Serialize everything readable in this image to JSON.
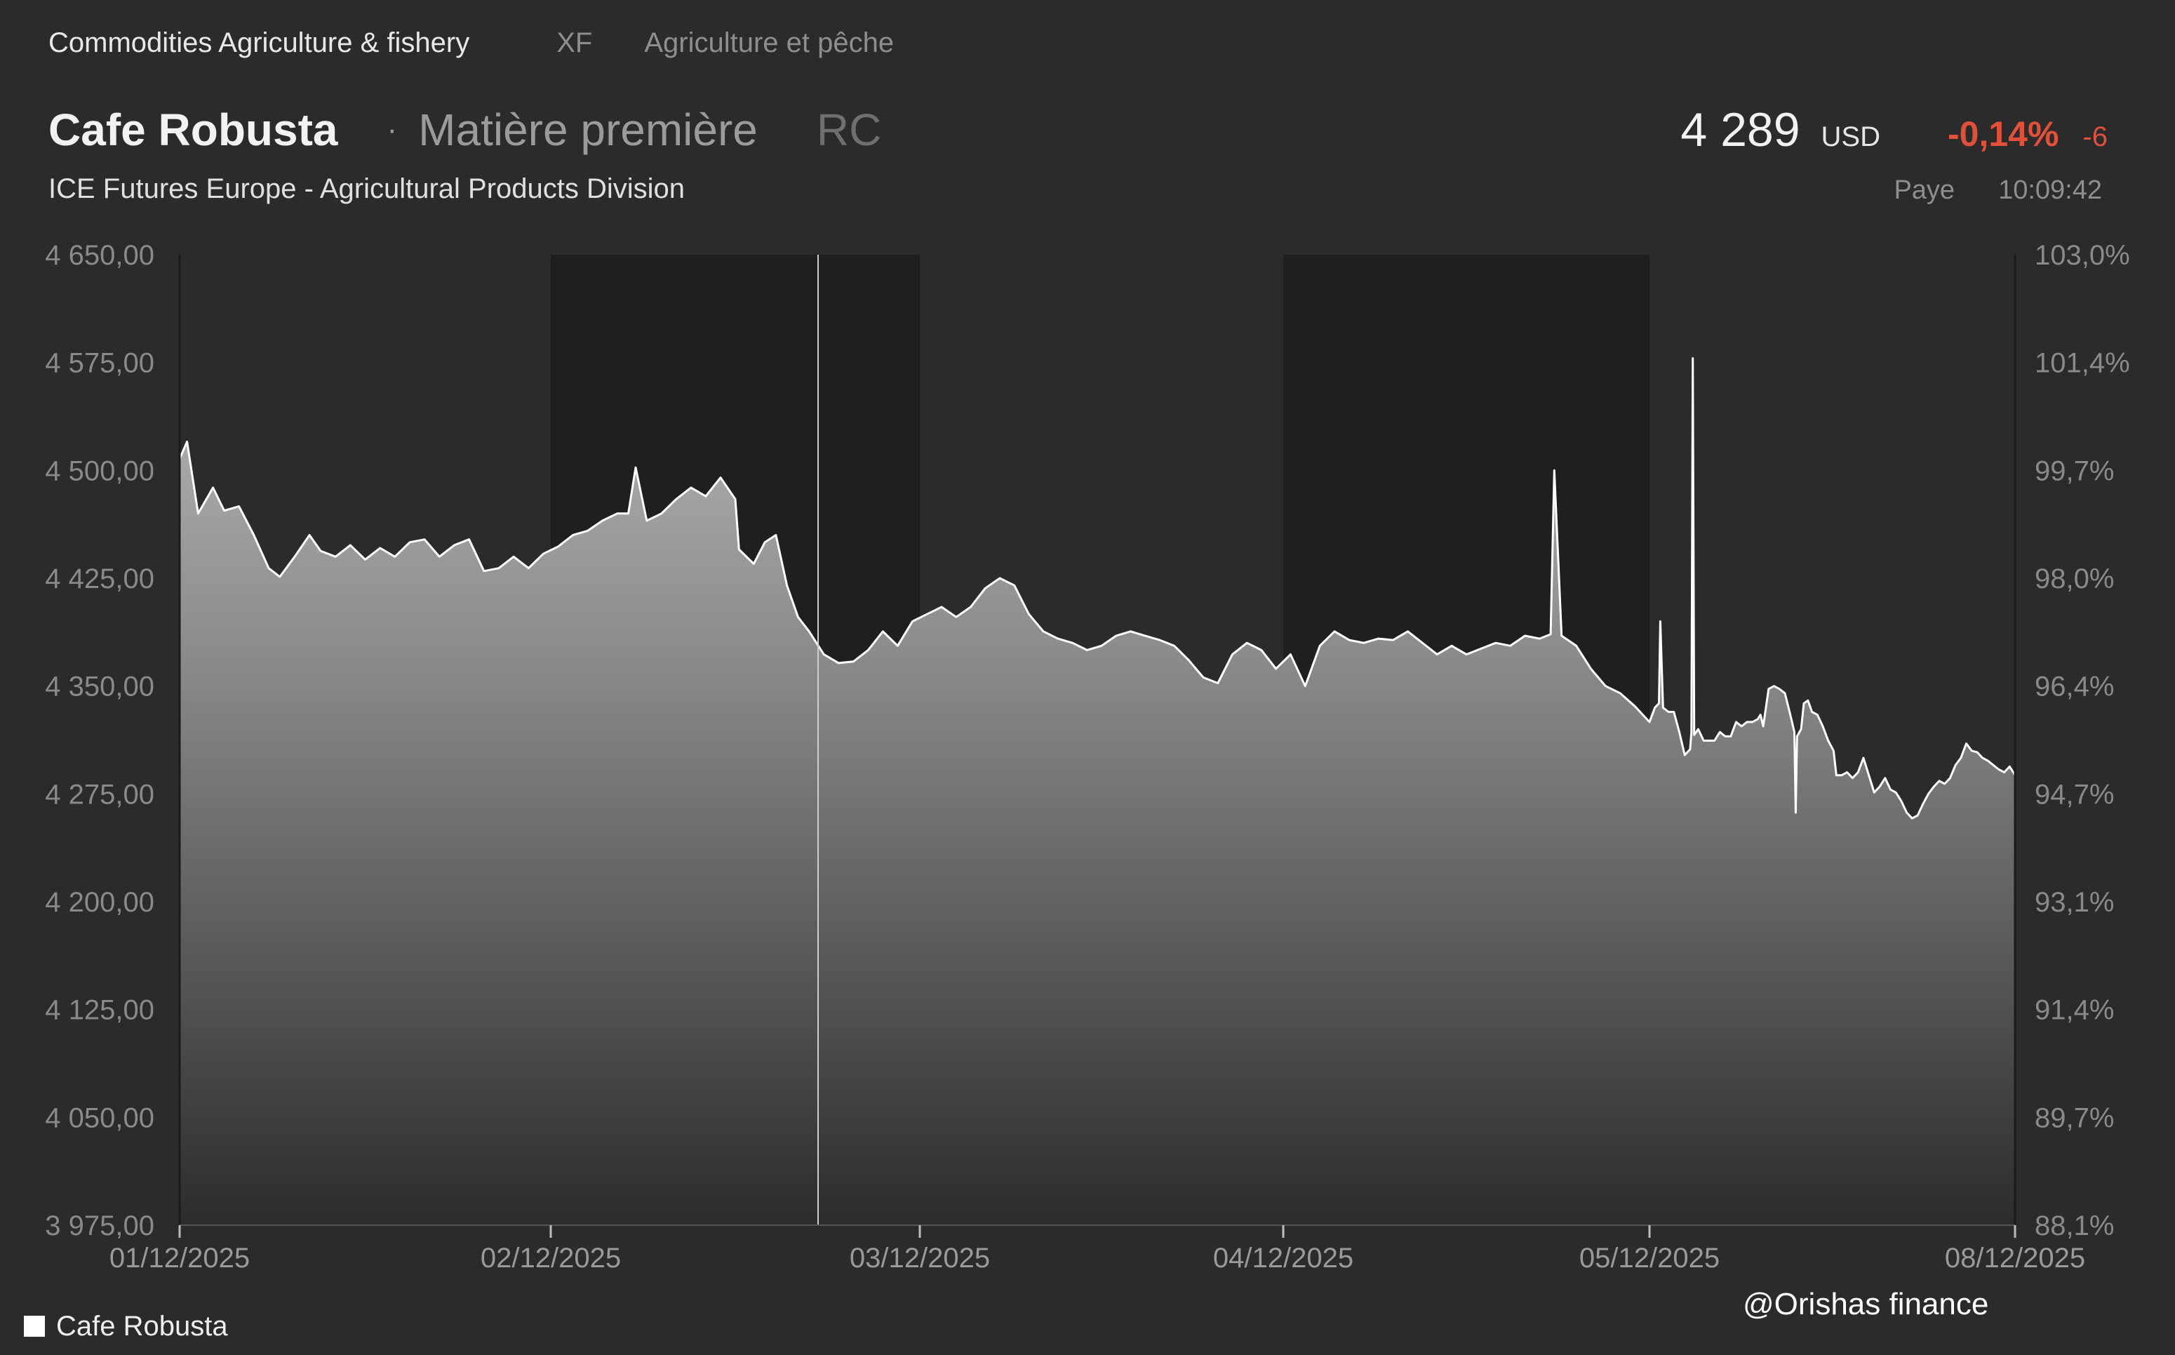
{
  "header": {
    "breadcrumb": {
      "category": "Commodities Agriculture & fishery",
      "code": "XF",
      "category_fr": "Agriculture et pêche"
    },
    "title": "Cafe Robusta",
    "separator": "·",
    "instrument_type": "Matière première",
    "ticker": "RC",
    "exchange": "ICE Futures Europe - Agricultural Products Division"
  },
  "quote": {
    "price": "4 289",
    "currency": "USD",
    "change_pct": "-0,14%",
    "change_abs": "-6",
    "status": "Paye",
    "time": "10:09:42"
  },
  "legend": {
    "series_name": "Cafe Robusta",
    "swatch_color": "#ffffff"
  },
  "watermark": "@Orishas finance",
  "colors": {
    "background": "#2b2b2b",
    "shaded_band": "#1f1f1f",
    "line": "#ffffff",
    "negative": "#e0503a"
  },
  "chart_data": {
    "type": "area",
    "series_name": "Cafe Robusta",
    "ylim": [
      3975,
      4650
    ],
    "y_ticks": [
      4650,
      4575,
      4500,
      4425,
      4350,
      4275,
      4200,
      4125,
      4050,
      3975
    ],
    "y_tick_labels": [
      "4 650,00",
      "4 575,00",
      "4 500,00",
      "4 425,00",
      "4 350,00",
      "4 275,00",
      "4 200,00",
      "4 125,00",
      "4 050,00",
      "3 975,00"
    ],
    "y2_tick_labels": [
      "103,0%",
      "101,4%",
      "99,7%",
      "98,0%",
      "96,4%",
      "94,7%",
      "93,1%",
      "91,4%",
      "89,7%",
      "88,1%"
    ],
    "x_tick_labels": [
      "01/12/2025",
      "02/12/2025",
      "03/12/2025",
      "04/12/2025",
      "05/12/2025",
      "08/12/2025"
    ],
    "shaded_sessions": [
      "02/12/2025",
      "04/12/2025"
    ],
    "points": [
      [
        0.0,
        4508
      ],
      [
        0.02,
        4520
      ],
      [
        0.05,
        4470
      ],
      [
        0.09,
        4488
      ],
      [
        0.12,
        4472
      ],
      [
        0.16,
        4475
      ],
      [
        0.2,
        4455
      ],
      [
        0.24,
        4432
      ],
      [
        0.27,
        4426
      ],
      [
        0.31,
        4440
      ],
      [
        0.35,
        4455
      ],
      [
        0.38,
        4444
      ],
      [
        0.42,
        4440
      ],
      [
        0.46,
        4448
      ],
      [
        0.5,
        4438
      ],
      [
        0.54,
        4446
      ],
      [
        0.58,
        4440
      ],
      [
        0.62,
        4450
      ],
      [
        0.66,
        4452
      ],
      [
        0.7,
        4440
      ],
      [
        0.74,
        4448
      ],
      [
        0.78,
        4452
      ],
      [
        0.82,
        4430
      ],
      [
        0.86,
        4432
      ],
      [
        0.9,
        4440
      ],
      [
        0.94,
        4432
      ],
      [
        0.98,
        4442
      ],
      [
        1.02,
        4447
      ],
      [
        1.06,
        4455
      ],
      [
        1.1,
        4458
      ],
      [
        1.14,
        4465
      ],
      [
        1.18,
        4470
      ],
      [
        1.21,
        4470
      ],
      [
        1.23,
        4502
      ],
      [
        1.26,
        4465
      ],
      [
        1.3,
        4470
      ],
      [
        1.34,
        4480
      ],
      [
        1.38,
        4488
      ],
      [
        1.42,
        4482
      ],
      [
        1.46,
        4495
      ],
      [
        1.5,
        4480
      ],
      [
        1.51,
        4445
      ],
      [
        1.55,
        4435
      ],
      [
        1.58,
        4450
      ],
      [
        1.61,
        4455
      ],
      [
        1.64,
        4420
      ],
      [
        1.67,
        4398
      ],
      [
        1.7,
        4388
      ],
      [
        1.74,
        4372
      ],
      [
        1.78,
        4366
      ],
      [
        1.82,
        4367
      ],
      [
        1.86,
        4375
      ],
      [
        1.9,
        4388
      ],
      [
        1.94,
        4378
      ],
      [
        1.98,
        4395
      ],
      [
        2.02,
        4400
      ],
      [
        2.06,
        4405
      ],
      [
        2.1,
        4398
      ],
      [
        2.14,
        4405
      ],
      [
        2.18,
        4418
      ],
      [
        2.22,
        4425
      ],
      [
        2.26,
        4420
      ],
      [
        2.3,
        4400
      ],
      [
        2.34,
        4388
      ],
      [
        2.38,
        4383
      ],
      [
        2.42,
        4380
      ],
      [
        2.46,
        4375
      ],
      [
        2.5,
        4378
      ],
      [
        2.54,
        4385
      ],
      [
        2.58,
        4388
      ],
      [
        2.62,
        4385
      ],
      [
        2.66,
        4382
      ],
      [
        2.7,
        4378
      ],
      [
        2.74,
        4368
      ],
      [
        2.78,
        4356
      ],
      [
        2.82,
        4352
      ],
      [
        2.86,
        4372
      ],
      [
        2.9,
        4380
      ],
      [
        2.94,
        4375
      ],
      [
        2.98,
        4362
      ],
      [
        3.02,
        4372
      ],
      [
        3.06,
        4350
      ],
      [
        3.1,
        4378
      ],
      [
        3.14,
        4388
      ],
      [
        3.18,
        4382
      ],
      [
        3.22,
        4380
      ],
      [
        3.26,
        4383
      ],
      [
        3.3,
        4382
      ],
      [
        3.34,
        4388
      ],
      [
        3.38,
        4380
      ],
      [
        3.42,
        4372
      ],
      [
        3.46,
        4378
      ],
      [
        3.5,
        4372
      ],
      [
        3.54,
        4376
      ],
      [
        3.58,
        4380
      ],
      [
        3.62,
        4378
      ],
      [
        3.66,
        4385
      ],
      [
        3.7,
        4383
      ],
      [
        3.73,
        4386
      ],
      [
        3.74,
        4500
      ],
      [
        3.76,
        4385
      ],
      [
        3.8,
        4378
      ],
      [
        3.84,
        4362
      ],
      [
        3.88,
        4350
      ],
      [
        3.92,
        4345
      ],
      [
        3.96,
        4336
      ],
      [
        4.0,
        4325
      ],
      [
        4.04,
        4335
      ],
      [
        4.07,
        4338
      ],
      [
        4.08,
        4395
      ],
      [
        4.1,
        4335
      ],
      [
        4.14,
        4332
      ],
      [
        4.18,
        4332
      ],
      [
        4.22,
        4318
      ],
      [
        4.26,
        4302
      ],
      [
        4.3,
        4306
      ],
      [
        4.31,
        4318
      ],
      [
        4.32,
        4578
      ],
      [
        4.33,
        4316
      ],
      [
        4.36,
        4320
      ],
      [
        4.4,
        4312
      ],
      [
        4.44,
        4312
      ],
      [
        4.48,
        4312
      ],
      [
        4.52,
        4318
      ],
      [
        4.56,
        4315
      ],
      [
        4.6,
        4315
      ],
      [
        4.64,
        4325
      ],
      [
        4.68,
        4322
      ],
      [
        4.72,
        4325
      ],
      [
        4.76,
        4325
      ],
      [
        4.8,
        4327
      ],
      [
        4.82,
        4330
      ],
      [
        4.84,
        4322
      ],
      [
        4.88,
        4348
      ],
      [
        4.92,
        4350
      ],
      [
        4.96,
        4348
      ],
      [
        5.0,
        4345
      ],
      [
        5.04,
        4330
      ],
      [
        5.07,
        4318
      ],
      [
        5.08,
        4262
      ],
      [
        5.09,
        4315
      ],
      [
        5.12,
        4320
      ],
      [
        5.14,
        4338
      ],
      [
        5.17,
        4340
      ],
      [
        5.2,
        4332
      ],
      [
        5.24,
        4330
      ],
      [
        5.28,
        4322
      ],
      [
        5.32,
        4312
      ],
      [
        5.36,
        4305
      ],
      [
        5.38,
        4288
      ],
      [
        5.42,
        4288
      ],
      [
        5.46,
        4290
      ],
      [
        5.5,
        4286
      ],
      [
        5.54,
        4290
      ],
      [
        5.58,
        4300
      ],
      [
        5.62,
        4288
      ],
      [
        5.66,
        4276
      ],
      [
        5.7,
        4280
      ],
      [
        5.74,
        4286
      ],
      [
        5.78,
        4278
      ],
      [
        5.82,
        4276
      ],
      [
        5.86,
        4270
      ],
      [
        5.9,
        4262
      ],
      [
        5.94,
        4258
      ],
      [
        5.98,
        4260
      ],
      [
        6.02,
        4268
      ],
      [
        6.06,
        4275
      ],
      [
        6.1,
        4280
      ],
      [
        6.14,
        4284
      ],
      [
        6.18,
        4282
      ],
      [
        6.22,
        4286
      ],
      [
        6.26,
        4295
      ],
      [
        6.3,
        4300
      ],
      [
        6.34,
        4310
      ],
      [
        6.38,
        4305
      ],
      [
        6.42,
        4304
      ],
      [
        6.46,
        4300
      ],
      [
        6.5,
        4298
      ],
      [
        6.54,
        4295
      ],
      [
        6.58,
        4292
      ],
      [
        6.62,
        4290
      ],
      [
        6.66,
        4294
      ],
      [
        6.7,
        4288
      ]
    ]
  }
}
